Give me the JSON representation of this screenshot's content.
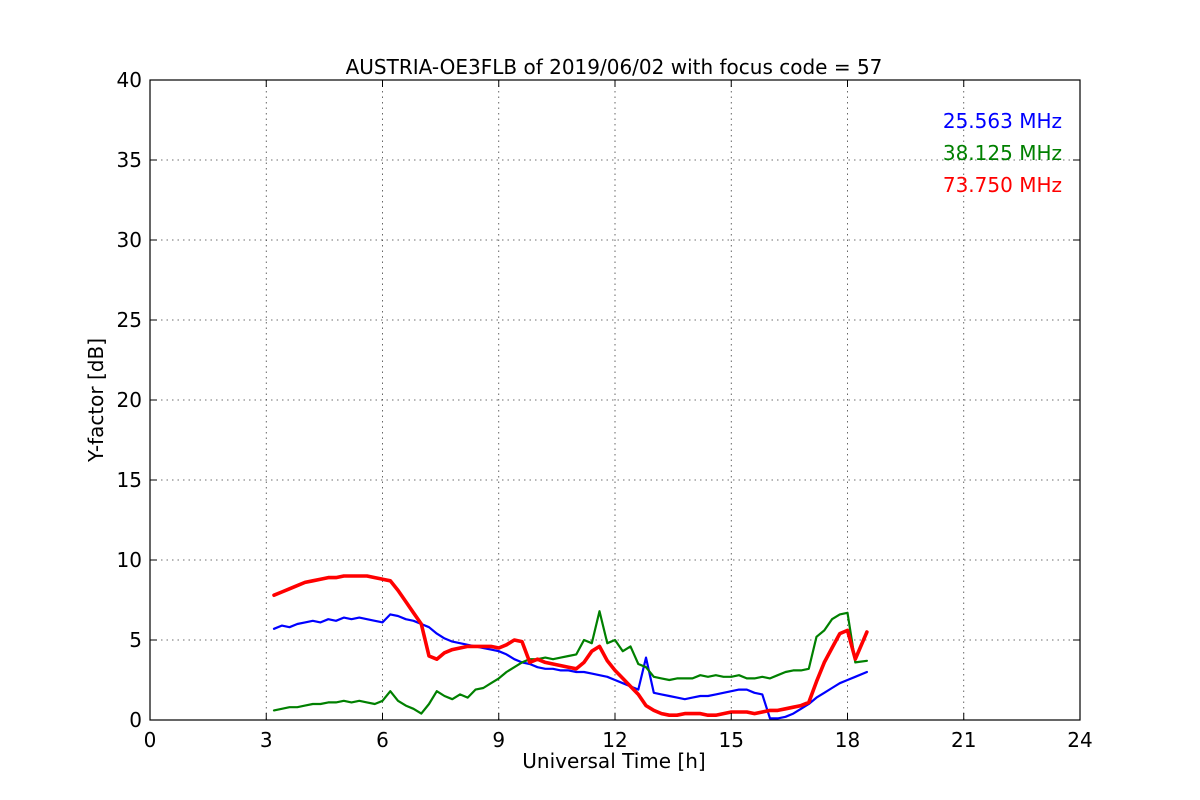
{
  "chart_data": {
    "type": "line",
    "title": "AUSTRIA-OE3FLB of 2019/06/02 with focus code = 57",
    "xlabel": "Universal Time [h]",
    "ylabel": "Y-factor [dB]",
    "xlim": [
      0,
      24
    ],
    "ylim": [
      0,
      40
    ],
    "xticks": [
      0,
      3,
      6,
      9,
      12,
      15,
      18,
      21,
      24
    ],
    "yticks": [
      0,
      5,
      10,
      15,
      20,
      25,
      30,
      35,
      40
    ],
    "grid": true,
    "legend_position": "top-right",
    "series": [
      {
        "name": "25.563 MHz",
        "color": "#0000ff",
        "x": [
          3.2,
          3.4,
          3.6,
          3.8,
          4.0,
          4.2,
          4.4,
          4.6,
          4.8,
          5.0,
          5.2,
          5.4,
          5.6,
          5.8,
          6.0,
          6.2,
          6.4,
          6.6,
          6.8,
          7.0,
          7.2,
          7.4,
          7.6,
          7.8,
          8.0,
          8.2,
          8.4,
          8.6,
          8.8,
          9.0,
          9.2,
          9.4,
          9.6,
          9.8,
          10.0,
          10.2,
          10.4,
          10.6,
          10.8,
          11.0,
          11.2,
          11.4,
          11.6,
          11.8,
          12.0,
          12.2,
          12.4,
          12.6,
          12.8,
          13.0,
          13.2,
          13.4,
          13.6,
          13.8,
          14.0,
          14.2,
          14.4,
          14.6,
          14.8,
          15.0,
          15.2,
          15.4,
          15.6,
          15.8,
          16.0,
          16.2,
          16.4,
          16.6,
          16.8,
          17.0,
          17.2,
          17.4,
          17.6,
          17.8,
          18.0,
          18.2,
          18.5
        ],
        "y": [
          5.7,
          5.9,
          5.8,
          6.0,
          6.1,
          6.2,
          6.1,
          6.3,
          6.2,
          6.4,
          6.3,
          6.4,
          6.3,
          6.2,
          6.1,
          6.6,
          6.5,
          6.3,
          6.2,
          6.0,
          5.8,
          5.4,
          5.1,
          4.9,
          4.8,
          4.7,
          4.6,
          4.5,
          4.4,
          4.3,
          4.1,
          3.8,
          3.6,
          3.5,
          3.3,
          3.2,
          3.2,
          3.1,
          3.1,
          3.0,
          3.0,
          2.9,
          2.8,
          2.7,
          2.5,
          2.3,
          2.1,
          1.9,
          3.9,
          1.7,
          1.6,
          1.5,
          1.4,
          1.3,
          1.4,
          1.5,
          1.5,
          1.6,
          1.7,
          1.8,
          1.9,
          1.9,
          1.7,
          1.6,
          0.1,
          0.1,
          0.2,
          0.4,
          0.7,
          1.0,
          1.4,
          1.7,
          2.0,
          2.3,
          2.5,
          2.7,
          3.0
        ]
      },
      {
        "name": "38.125 MHz",
        "color": "#008000",
        "x": [
          3.2,
          3.4,
          3.6,
          3.8,
          4.0,
          4.2,
          4.4,
          4.6,
          4.8,
          5.0,
          5.2,
          5.4,
          5.6,
          5.8,
          6.0,
          6.2,
          6.4,
          6.6,
          6.8,
          7.0,
          7.2,
          7.4,
          7.6,
          7.8,
          8.0,
          8.2,
          8.4,
          8.6,
          8.8,
          9.0,
          9.2,
          9.4,
          9.6,
          9.8,
          10.0,
          10.2,
          10.4,
          10.6,
          10.8,
          11.0,
          11.2,
          11.4,
          11.6,
          11.8,
          12.0,
          12.2,
          12.4,
          12.6,
          12.8,
          13.0,
          13.2,
          13.4,
          13.6,
          13.8,
          14.0,
          14.2,
          14.4,
          14.6,
          14.8,
          15.0,
          15.2,
          15.4,
          15.6,
          15.8,
          16.0,
          16.2,
          16.4,
          16.6,
          16.8,
          17.0,
          17.2,
          17.4,
          17.6,
          17.8,
          18.0,
          18.2,
          18.5
        ],
        "y": [
          0.6,
          0.7,
          0.8,
          0.8,
          0.9,
          1.0,
          1.0,
          1.1,
          1.1,
          1.2,
          1.1,
          1.2,
          1.1,
          1.0,
          1.2,
          1.8,
          1.2,
          0.9,
          0.7,
          0.4,
          1.0,
          1.8,
          1.5,
          1.3,
          1.6,
          1.4,
          1.9,
          2.0,
          2.3,
          2.6,
          3.0,
          3.3,
          3.6,
          3.8,
          3.8,
          3.9,
          3.8,
          3.9,
          4.0,
          4.1,
          5.0,
          4.8,
          6.8,
          4.8,
          5.0,
          4.3,
          4.6,
          3.5,
          3.3,
          2.7,
          2.6,
          2.5,
          2.6,
          2.6,
          2.6,
          2.8,
          2.7,
          2.8,
          2.7,
          2.7,
          2.8,
          2.6,
          2.6,
          2.7,
          2.6,
          2.8,
          3.0,
          3.1,
          3.1,
          3.2,
          5.2,
          5.6,
          6.3,
          6.6,
          6.7,
          3.6,
          3.7
        ]
      },
      {
        "name": "73.750 MHz",
        "color": "#ff0000",
        "x": [
          3.2,
          3.4,
          3.6,
          3.8,
          4.0,
          4.2,
          4.4,
          4.6,
          4.8,
          5.0,
          5.2,
          5.4,
          5.6,
          5.8,
          6.0,
          6.2,
          6.4,
          6.6,
          6.8,
          7.0,
          7.2,
          7.4,
          7.6,
          7.8,
          8.0,
          8.2,
          8.4,
          8.6,
          8.8,
          9.0,
          9.2,
          9.4,
          9.6,
          9.8,
          10.0,
          10.2,
          10.4,
          10.6,
          10.8,
          11.0,
          11.2,
          11.4,
          11.6,
          11.8,
          12.0,
          12.2,
          12.4,
          12.6,
          12.8,
          13.0,
          13.2,
          13.4,
          13.6,
          13.8,
          14.0,
          14.2,
          14.4,
          14.6,
          14.8,
          15.0,
          15.2,
          15.4,
          15.6,
          15.8,
          16.0,
          16.2,
          16.4,
          16.6,
          16.8,
          17.0,
          17.2,
          17.4,
          17.6,
          17.8,
          18.0,
          18.2,
          18.5
        ],
        "y": [
          7.8,
          8.0,
          8.2,
          8.4,
          8.6,
          8.7,
          8.8,
          8.9,
          8.9,
          9.0,
          9.0,
          9.0,
          9.0,
          8.9,
          8.8,
          8.7,
          8.1,
          7.4,
          6.7,
          6.0,
          4.0,
          3.8,
          4.2,
          4.4,
          4.5,
          4.6,
          4.6,
          4.6,
          4.6,
          4.5,
          4.7,
          5.0,
          4.9,
          3.6,
          3.8,
          3.6,
          3.5,
          3.4,
          3.3,
          3.2,
          3.6,
          4.3,
          4.6,
          3.7,
          3.1,
          2.6,
          2.1,
          1.6,
          0.9,
          0.6,
          0.4,
          0.3,
          0.3,
          0.4,
          0.4,
          0.4,
          0.3,
          0.3,
          0.4,
          0.5,
          0.5,
          0.5,
          0.4,
          0.5,
          0.6,
          0.6,
          0.7,
          0.8,
          0.9,
          1.1,
          2.4,
          3.6,
          4.5,
          5.4,
          5.6,
          3.8,
          5.5
        ]
      }
    ]
  }
}
